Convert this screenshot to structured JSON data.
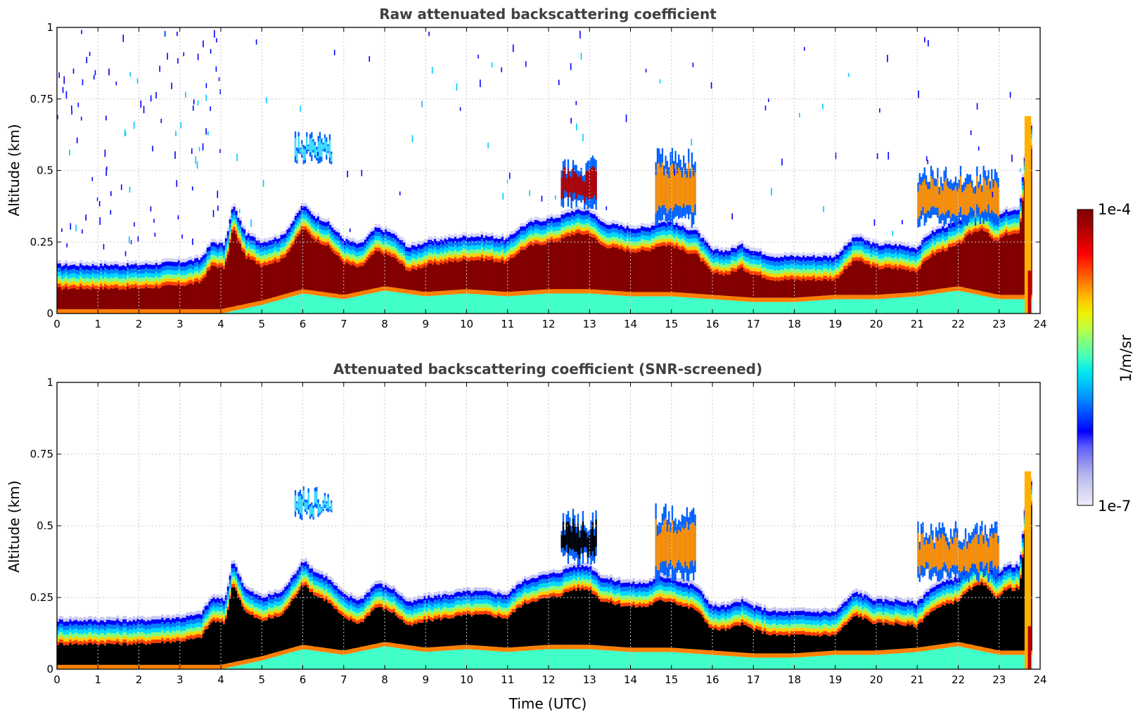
{
  "chart_data": [
    {
      "type": "heatmap",
      "title": "Raw attenuated backscattering coefficient",
      "xlabel": "",
      "ylabel": "Altitude (km)",
      "xlim": [
        0,
        24
      ],
      "ylim": [
        0,
        1
      ],
      "xticks": [
        "0",
        "1",
        "2",
        "3",
        "4",
        "5",
        "6",
        "7",
        "8",
        "9",
        "10",
        "11",
        "12",
        "13",
        "14",
        "15",
        "16",
        "17",
        "18",
        "19",
        "20",
        "21",
        "22",
        "23",
        "24"
      ],
      "yticks": [
        "0",
        "0.25",
        "0.5",
        "0.75",
        "1"
      ],
      "grid": true,
      "screened": false,
      "layer_top_km": {
        "x": [
          0,
          1,
          2,
          3,
          3.5,
          3.8,
          4.1,
          4.3,
          4.6,
          5,
          5.5,
          5.8,
          6,
          6.3,
          6.6,
          7,
          7.4,
          7.8,
          8.2,
          8.6,
          9,
          9.5,
          10,
          10.5,
          11,
          11.3,
          11.6,
          12,
          12.3,
          12.6,
          13,
          13.3,
          13.6,
          14,
          14.4,
          14.7,
          15,
          15.3,
          15.6,
          16,
          16.4,
          16.7,
          17,
          17.5,
          18,
          18.5,
          19,
          19.5,
          20,
          20.5,
          21,
          21.3,
          21.6,
          22,
          22.3,
          22.6,
          22.9,
          23.2,
          23.5,
          23.7
        ],
        "y": [
          0.17,
          0.17,
          0.17,
          0.18,
          0.19,
          0.25,
          0.24,
          0.38,
          0.28,
          0.25,
          0.27,
          0.33,
          0.38,
          0.34,
          0.32,
          0.26,
          0.24,
          0.3,
          0.28,
          0.23,
          0.25,
          0.26,
          0.27,
          0.27,
          0.26,
          0.3,
          0.32,
          0.33,
          0.34,
          0.36,
          0.36,
          0.32,
          0.31,
          0.3,
          0.3,
          0.32,
          0.32,
          0.3,
          0.29,
          0.22,
          0.22,
          0.24,
          0.22,
          0.2,
          0.2,
          0.2,
          0.2,
          0.27,
          0.24,
          0.24,
          0.23,
          0.28,
          0.3,
          0.32,
          0.36,
          0.38,
          0.33,
          0.36,
          0.36,
          0.66
        ]
      },
      "layer_bottom_km": {
        "x": [
          0,
          3,
          4,
          5,
          6,
          7,
          8,
          9,
          10,
          11,
          12,
          13,
          14,
          15,
          16,
          17,
          18,
          19,
          20,
          21,
          22,
          23,
          23.7
        ],
        "y": [
          0,
          0,
          0,
          0.03,
          0.07,
          0.05,
          0.08,
          0.06,
          0.07,
          0.06,
          0.07,
          0.07,
          0.06,
          0.06,
          0.05,
          0.04,
          0.04,
          0.05,
          0.05,
          0.06,
          0.08,
          0.05,
          0.05
        ]
      },
      "elevated_features": [
        {
          "x0": 12.3,
          "x1": 13.2,
          "y0": 0.36,
          "y1": 0.56,
          "core": "dark-red"
        },
        {
          "x0": 14.6,
          "x1": 15.6,
          "y0": 0.3,
          "y1": 0.58,
          "core": "mixed"
        },
        {
          "x0": 5.8,
          "x1": 6.7,
          "y0": 0.52,
          "y1": 0.64,
          "core": "cyan"
        },
        {
          "x0": 21.0,
          "x1": 23.0,
          "y0": 0.3,
          "y1": 0.52,
          "core": "mixed"
        }
      ]
    },
    {
      "type": "heatmap",
      "title": "Attenuated backscattering coefficient (SNR-screened)",
      "xlabel": "Time (UTC)",
      "ylabel": "Altitude (km)",
      "xlim": [
        0,
        24
      ],
      "ylim": [
        0,
        1
      ],
      "xticks": [
        "0",
        "1",
        "2",
        "3",
        "4",
        "5",
        "6",
        "7",
        "8",
        "9",
        "10",
        "11",
        "12",
        "13",
        "14",
        "15",
        "16",
        "17",
        "18",
        "19",
        "20",
        "21",
        "22",
        "23",
        "24"
      ],
      "yticks": [
        "0",
        "0.25",
        "0.5",
        "0.75",
        "1"
      ],
      "grid": true,
      "screened": true
    }
  ],
  "colorbar": {
    "max_label": "1e-4",
    "min_label": "1e-7",
    "unit_label": "1/m/sr",
    "colors": [
      "#ececf8",
      "#d4d4f4",
      "#b8b8f0",
      "#8c8cf0",
      "#5a5aff",
      "#0000ff",
      "#0040ff",
      "#0080ff",
      "#00b8ff",
      "#00e8f0",
      "#40ffc0",
      "#80ff80",
      "#c0ff40",
      "#f0f000",
      "#ffc000",
      "#ff8000",
      "#ff4000",
      "#ff0000",
      "#d00000",
      "#a00000",
      "#800000"
    ]
  }
}
